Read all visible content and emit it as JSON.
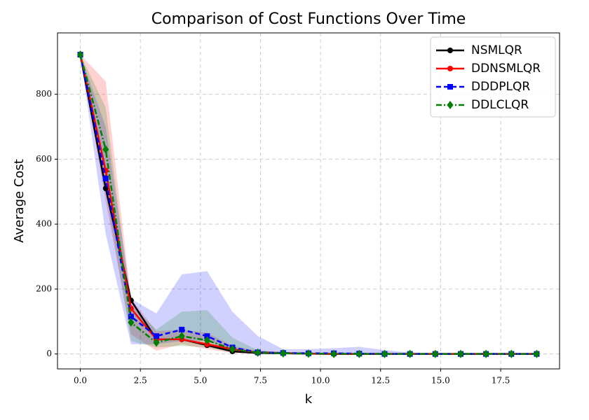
{
  "chart_data": {
    "type": "line",
    "title": "Comparison of Cost Functions Over Time",
    "xlabel": "k",
    "ylabel": "Average Cost",
    "x": [
      0,
      1.0556,
      2.1111,
      3.1667,
      4.2222,
      5.2778,
      6.3333,
      7.3889,
      8.4444,
      9.5,
      10.5556,
      11.6111,
      12.6667,
      13.7222,
      14.7778,
      15.8333,
      16.8889,
      17.9444,
      19
    ],
    "xlim": [
      -0.95,
      19.95
    ],
    "ylim": [
      -46,
      989
    ],
    "xticks": [
      {
        "value": 0,
        "label": "0.0"
      },
      2.5,
      {
        "value": 5,
        "label": "5.0"
      },
      7.5,
      {
        "value": 10,
        "label": "10.0"
      },
      12.5,
      {
        "value": 15,
        "label": "15.0"
      },
      17.5
    ],
    "yticks": [
      0,
      200,
      400,
      600,
      800
    ],
    "grid": true,
    "legend": "upper right",
    "series": [
      {
        "name": "NSMLQR",
        "color": "#000000",
        "marker": "circle",
        "dash": "solid",
        "values": [
          922,
          510,
          165,
          45,
          45,
          27,
          8,
          3,
          2,
          1,
          0,
          0,
          0,
          0,
          0,
          0,
          0,
          0,
          0
        ]
      },
      {
        "name": "DDNSMLQR",
        "color": "#ff0000",
        "marker": "circle",
        "dash": "solid",
        "values": [
          922,
          565,
          140,
          45,
          45,
          30,
          15,
          5,
          3,
          1,
          0,
          0,
          0,
          0,
          0,
          0,
          0,
          0,
          0
        ],
        "band_upper": [
          922,
          840,
          170,
          70,
          75,
          65,
          25,
          10,
          5,
          3,
          2,
          1,
          1,
          0,
          0,
          0,
          0,
          0,
          0
        ],
        "band_lower": [
          922,
          470,
          60,
          10,
          30,
          15,
          3,
          0,
          0,
          0,
          0,
          0,
          0,
          0,
          0,
          0,
          0,
          0,
          0
        ]
      },
      {
        "name": "DDDPLQR",
        "color": "#0000ff",
        "marker": "square",
        "dash": "dashed",
        "values": [
          922,
          540,
          115,
          55,
          75,
          55,
          20,
          5,
          3,
          2,
          2,
          1,
          0,
          0,
          0,
          0,
          0,
          0,
          0
        ],
        "band_upper": [
          922,
          700,
          170,
          125,
          245,
          255,
          130,
          55,
          15,
          15,
          18,
          22,
          12,
          5,
          2,
          1,
          1,
          0,
          0
        ],
        "band_lower": [
          922,
          370,
          30,
          30,
          40,
          40,
          10,
          0,
          0,
          0,
          0,
          0,
          0,
          0,
          0,
          0,
          0,
          0,
          0
        ]
      },
      {
        "name": "DDLCLQR",
        "color": "#008000",
        "marker": "diamond",
        "dash": "dashdot",
        "values": [
          922,
          630,
          97,
          35,
          55,
          42,
          15,
          4,
          2,
          1,
          0,
          0,
          0,
          0,
          0,
          0,
          0,
          0,
          0
        ],
        "band_upper": [
          922,
          760,
          150,
          75,
          130,
          135,
          50,
          12,
          5,
          3,
          2,
          1,
          0,
          0,
          0,
          0,
          0,
          0,
          0
        ],
        "band_lower": [
          922,
          500,
          40,
          20,
          25,
          20,
          5,
          0,
          0,
          0,
          0,
          0,
          0,
          0,
          0,
          0,
          0,
          0,
          0
        ]
      }
    ]
  }
}
